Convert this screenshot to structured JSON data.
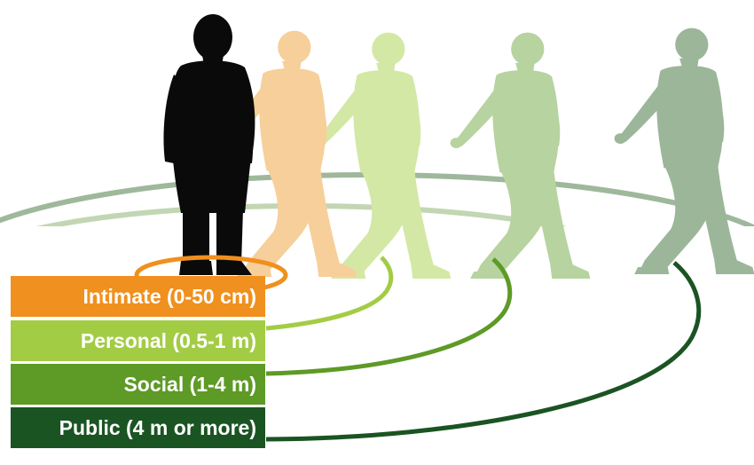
{
  "zones": [
    {
      "id": "intimate",
      "label": "Intimate (0-50 cm)",
      "color": "#f0901e"
    },
    {
      "id": "personal",
      "label": "Personal (0.5-1 m)",
      "color": "#a3cc45"
    },
    {
      "id": "social",
      "label": "Social (1-4 m)",
      "color": "#5e9a26"
    },
    {
      "id": "public",
      "label": "Public (4 m or more)",
      "color": "#1a5423"
    }
  ],
  "figures": [
    {
      "name": "person-intimate",
      "color": "#0a0a0a"
    },
    {
      "name": "person-personal",
      "color": "#f6cf9a"
    },
    {
      "name": "person-social",
      "color": "#d4e8a6"
    },
    {
      "name": "person-public-near",
      "color": "#b7d3a0"
    },
    {
      "name": "person-public-far",
      "color": "#9cb69a"
    }
  ],
  "ring_backgrounds": [
    "#9fb89c",
    "#c2d6b3",
    "#dbe9c4"
  ]
}
